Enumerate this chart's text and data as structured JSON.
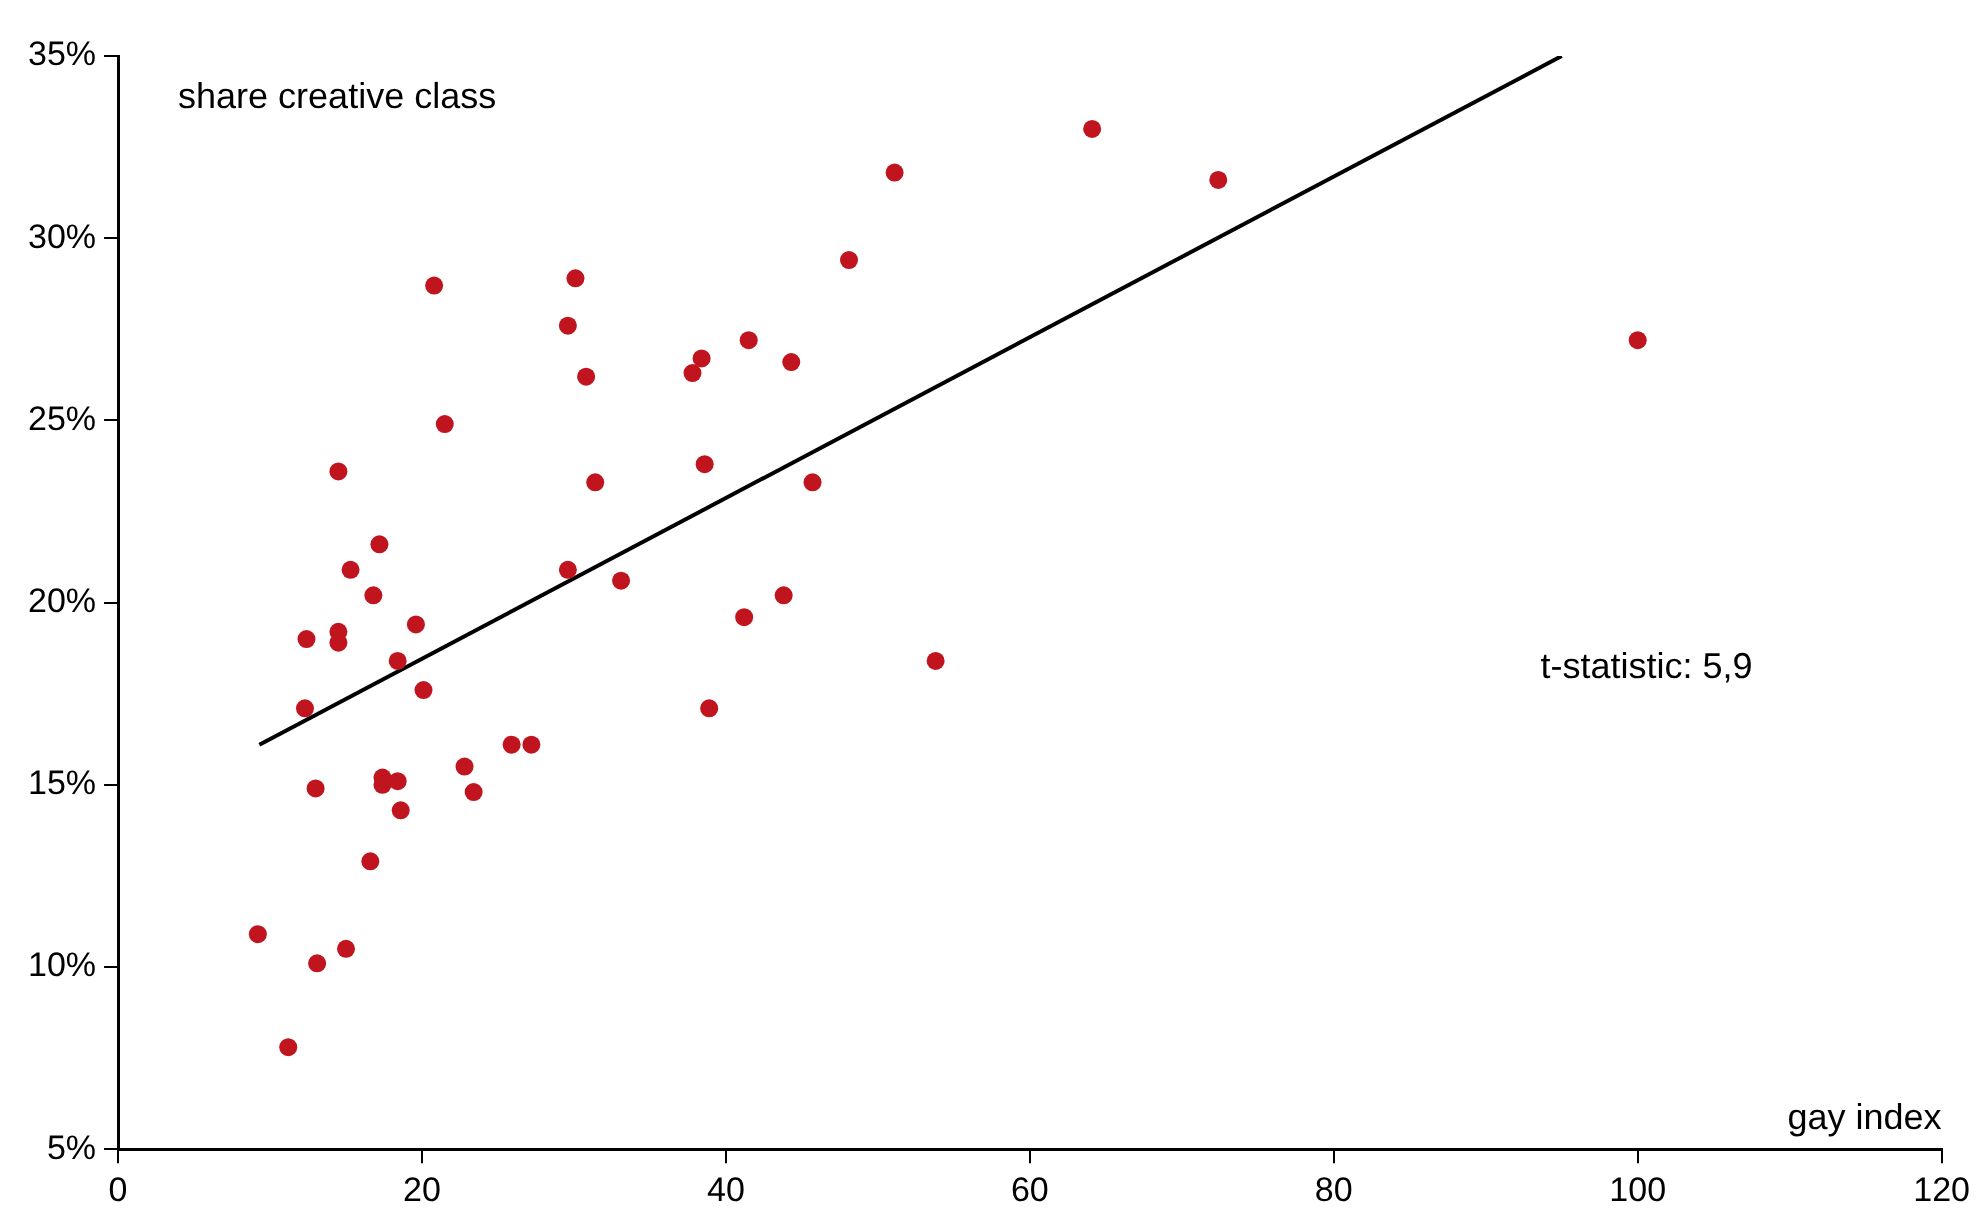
{
  "chart_data": {
    "type": "scatter",
    "xlabel": "gay index",
    "ylabel": "share creative class",
    "annotations": [
      "t-statistic: 5,9"
    ],
    "xlim": [
      0,
      120
    ],
    "xticks": [
      0,
      20,
      40,
      60,
      80,
      100,
      120
    ],
    "ylim": [
      5,
      35
    ],
    "yticks": [
      {
        "value": 5,
        "label": "5%"
      },
      {
        "value": 10,
        "label": "10%"
      },
      {
        "value": 15,
        "label": "15%"
      },
      {
        "value": 20,
        "label": "20%"
      },
      {
        "value": 25,
        "label": "25%"
      },
      {
        "value": 30,
        "label": "30%"
      },
      {
        "value": 35,
        "label": "35%"
      }
    ],
    "grid": false,
    "legend": false,
    "marker": "circle",
    "series": [
      {
        "color": "#c0141e",
        "x": [
          9.2,
          11.2,
          12.3,
          12.4,
          13.0,
          13.1,
          14.5,
          14.5,
          14.5,
          15.0,
          15.3,
          16.6,
          16.8,
          17.2,
          17.4,
          17.4,
          18.4,
          18.4,
          18.6,
          19.6,
          20.1,
          20.8,
          21.5,
          22.8,
          23.4,
          25.9,
          27.2,
          29.6,
          29.6,
          30.1,
          30.8,
          31.4,
          33.1,
          37.8,
          38.4,
          38.6,
          38.9,
          41.2,
          41.5,
          43.8,
          44.3,
          45.7,
          48.1,
          51.1,
          53.8,
          64.1,
          72.4,
          100.0
        ],
        "values": [
          10.9,
          7.8,
          17.1,
          19.0,
          14.9,
          10.1,
          23.6,
          19.2,
          18.9,
          10.5,
          20.9,
          12.9,
          20.2,
          21.6,
          15.2,
          15.0,
          15.1,
          18.4,
          14.3,
          19.4,
          17.6,
          28.7,
          24.9,
          15.5,
          14.8,
          16.1,
          16.1,
          27.6,
          20.9,
          28.9,
          26.2,
          23.3,
          20.6,
          26.3,
          26.7,
          23.8,
          17.1,
          19.6,
          27.2,
          20.2,
          26.6,
          23.3,
          29.4,
          31.8,
          18.4,
          33.0,
          31.6,
          27.2
        ]
      },
      {
        "type": "line",
        "color": "#000000",
        "marker": "none",
        "x": [
          9.3,
          95.0
        ],
        "values": [
          16.1,
          35.0
        ]
      }
    ]
  }
}
